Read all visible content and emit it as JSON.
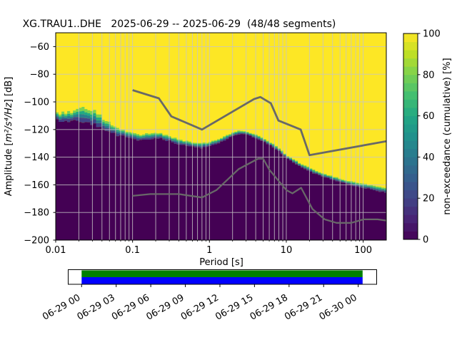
{
  "figure": {
    "background": "#ffffff"
  },
  "chart_data": {
    "type": "heatmap",
    "title": "XG.TRAU1..DHE   2025-06-29 -- 2025-06-29  (48/48 segments)",
    "station": "XG.TRAU1..DHE",
    "date_range": "2025-06-29 -- 2025-06-29",
    "segments_info": "48/48 segments",
    "xlabel": "Period [s]",
    "ylabel": {
      "prefix": "Amplitude [",
      "math": "m²/s⁴/Hz",
      "suffix": "] [dB]"
    },
    "x_scale": "log",
    "xlim": [
      0.01,
      200
    ],
    "ylim": [
      -200,
      -50
    ],
    "grid": true,
    "x_ticks": [
      0.01,
      0.1,
      1,
      10,
      100
    ],
    "x_tick_labels": [
      "0.01",
      "0.1",
      "1",
      "10",
      "100"
    ],
    "y_ticks": [
      -60,
      -80,
      -100,
      -120,
      -140,
      -160,
      -180,
      -200
    ],
    "y_tick_labels": [
      "−60",
      "−80",
      "−100",
      "−120",
      "−140",
      "−160",
      "−180",
      "−200"
    ],
    "colors": {
      "high": "#fde725",
      "low": "#440154",
      "noise_model_line": "#686868",
      "grid_line": "#c6c6c6"
    },
    "colorbar": {
      "label": "non-exceedance (cumulative) [%]",
      "ticks": [
        0,
        20,
        40,
        60,
        80,
        100
      ],
      "steps": 25,
      "colormap": "viridis",
      "colormap_anchors": [
        "#440154",
        "#482475",
        "#414487",
        "#355f8d",
        "#2a788e",
        "#21918c",
        "#22a884",
        "#44bf70",
        "#7ad151",
        "#bddf26",
        "#fde725"
      ]
    },
    "mode_curve": [
      [
        0.01,
        -110.5,
        3.0
      ],
      [
        0.013,
        -111.5,
        3.0
      ],
      [
        0.016,
        -111.0,
        3.5
      ],
      [
        0.02,
        -110.0,
        4.5
      ],
      [
        0.026,
        -110.5,
        5.0
      ],
      [
        0.032,
        -111.5,
        4.5
      ],
      [
        0.04,
        -115.0,
        3.5
      ],
      [
        0.05,
        -118.5,
        3.0
      ],
      [
        0.065,
        -121.5,
        2.5
      ],
      [
        0.08,
        -123.0,
        2.2
      ],
      [
        0.1,
        -124.5,
        2.2
      ],
      [
        0.13,
        -125.5,
        2.0
      ],
      [
        0.17,
        -124.8,
        2.0
      ],
      [
        0.22,
        -124.3,
        2.0
      ],
      [
        0.3,
        -126.5,
        1.8
      ],
      [
        0.4,
        -129.0,
        1.8
      ],
      [
        0.55,
        -130.5,
        1.6
      ],
      [
        0.75,
        -131.5,
        1.6
      ],
      [
        1.0,
        -130.5,
        1.5
      ],
      [
        1.3,
        -128.5,
        1.4
      ],
      [
        1.7,
        -125.5,
        1.3
      ],
      [
        2.1,
        -123.0,
        1.2
      ],
      [
        2.5,
        -122.0,
        1.2
      ],
      [
        3.0,
        -122.5,
        1.2
      ],
      [
        4.0,
        -125.0,
        1.2
      ],
      [
        5.0,
        -127.5,
        1.2
      ],
      [
        6.5,
        -131.0,
        1.2
      ],
      [
        8.0,
        -134.5,
        1.2
      ],
      [
        10.0,
        -139.5,
        1.2
      ],
      [
        13.0,
        -143.5,
        1.2
      ],
      [
        17.0,
        -147.0,
        1.2
      ],
      [
        22.0,
        -150.0,
        1.2
      ],
      [
        30.0,
        -153.0,
        1.2
      ],
      [
        42.0,
        -155.5,
        1.2
      ],
      [
        60.0,
        -158.0,
        1.3
      ],
      [
        85.0,
        -160.0,
        1.4
      ],
      [
        120.0,
        -161.5,
        1.5
      ],
      [
        160.0,
        -163.0,
        1.5
      ],
      [
        200.0,
        -164.0,
        1.5
      ]
    ],
    "noise_models": {
      "nhnm": [
        [
          0.1,
          -91.5
        ],
        [
          0.22,
          -97.4
        ],
        [
          0.32,
          -110.5
        ],
        [
          0.8,
          -120.0
        ],
        [
          3.8,
          -98.0
        ],
        [
          4.6,
          -96.5
        ],
        [
          6.3,
          -101.0
        ],
        [
          7.9,
          -113.5
        ],
        [
          15.4,
          -120.0
        ],
        [
          20.0,
          -138.5
        ],
        [
          354.8,
          -126.0
        ]
      ],
      "nlnm": [
        [
          0.1,
          -168.0
        ],
        [
          0.17,
          -166.7
        ],
        [
          0.4,
          -166.7
        ],
        [
          0.8,
          -169.2
        ],
        [
          1.24,
          -163.7
        ],
        [
          2.4,
          -148.6
        ],
        [
          4.3,
          -141.1
        ],
        [
          5.0,
          -141.1
        ],
        [
          6.0,
          -149.0
        ],
        [
          10.0,
          -163.8
        ],
        [
          12.0,
          -166.2
        ],
        [
          15.6,
          -162.1
        ],
        [
          21.9,
          -177.5
        ],
        [
          31.6,
          -185.0
        ],
        [
          45.0,
          -187.5
        ],
        [
          70.0,
          -187.5
        ],
        [
          101.0,
          -185.0
        ],
        [
          154.0,
          -185.0
        ],
        [
          328.0,
          -187.5
        ]
      ]
    }
  },
  "timeline": {
    "tick_labels": [
      "06-29 00",
      "06-29 03",
      "06-29 06",
      "06-29 09",
      "06-29 12",
      "06-29 15",
      "06-29 18",
      "06-29 21",
      "06-30 00"
    ],
    "bars": [
      {
        "name": "coverage",
        "color": "#008000"
      },
      {
        "name": "segments",
        "color": "#0000ff"
      }
    ]
  }
}
